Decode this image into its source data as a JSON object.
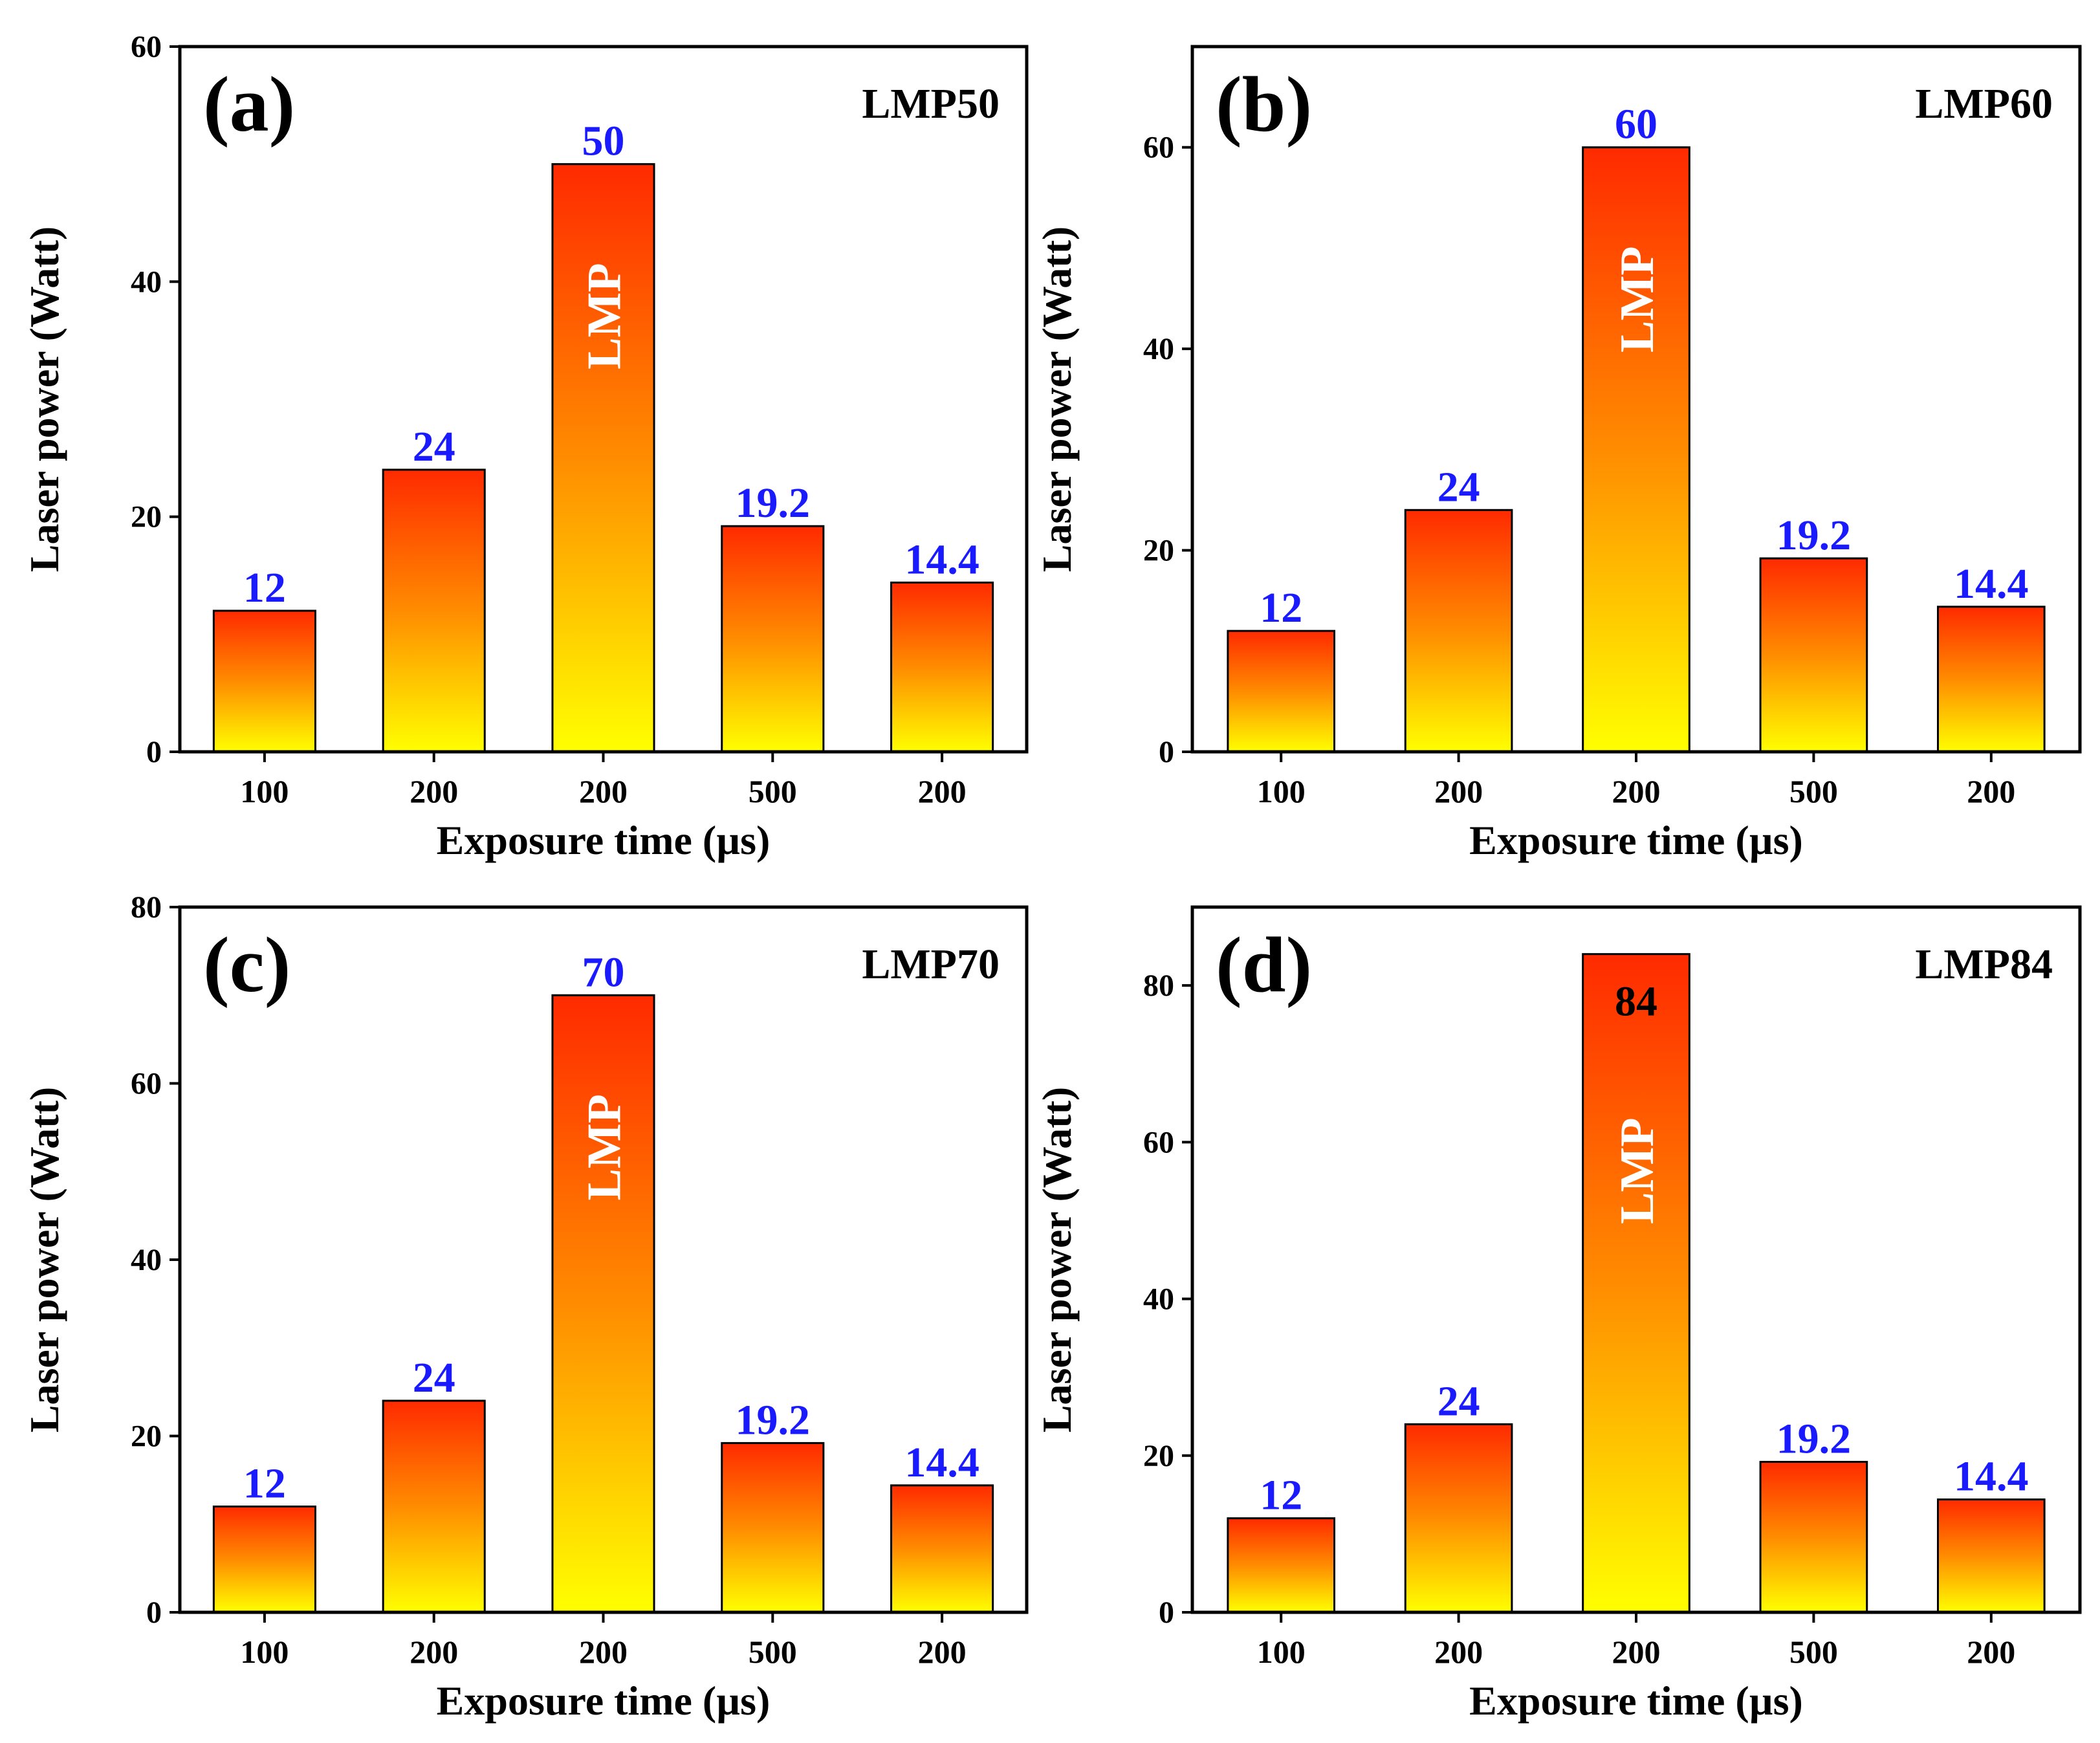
{
  "colors": {
    "bar_top": "#ff2a00",
    "bar_mid": "#ff8c00",
    "bar_bottom": "#ffff00",
    "value_label": "#1a1aff",
    "value_label_inside": "#000000",
    "bar_text": "#ffffff",
    "axis": "#000000"
  },
  "chart_data": [
    {
      "type": "bar",
      "panel_label": "(a)",
      "title": "LMP50",
      "xlabel": "Exposure time (µs)",
      "ylabel": "Laser power (Watt)",
      "categories": [
        "100",
        "200",
        "200",
        "500",
        "200"
      ],
      "values": [
        12,
        24,
        50,
        19.2,
        14.4
      ],
      "value_labels": [
        "12",
        "24",
        "50",
        "19.2",
        "14.4"
      ],
      "label_inside": [
        false,
        false,
        false,
        false,
        false
      ],
      "ylim": [
        0,
        60
      ],
      "yticks": [
        0,
        20,
        40,
        60
      ],
      "ytick_labels": [
        "0",
        "20",
        "40",
        "60"
      ],
      "bar_text": "LMP",
      "bar_text_index": 2
    },
    {
      "type": "bar",
      "panel_label": "(b)",
      "title": "LMP60",
      "xlabel": "Exposure time (µs)",
      "ylabel": "Laser power (Watt)",
      "categories": [
        "100",
        "200",
        "200",
        "500",
        "200"
      ],
      "values": [
        12,
        24,
        60,
        19.2,
        14.4
      ],
      "value_labels": [
        "12",
        "24",
        "60",
        "19.2",
        "14.4"
      ],
      "label_inside": [
        false,
        false,
        false,
        false,
        false
      ],
      "ylim": [
        0,
        70
      ],
      "yticks": [
        0,
        20,
        40,
        60
      ],
      "ytick_labels": [
        "0",
        "20",
        "40",
        "60"
      ],
      "bar_text": "LMP",
      "bar_text_index": 2
    },
    {
      "type": "bar",
      "panel_label": "(c)",
      "title": "LMP70",
      "xlabel": "Exposure time (µs)",
      "ylabel": "Laser power (Watt)",
      "categories": [
        "100",
        "200",
        "200",
        "500",
        "200"
      ],
      "values": [
        12,
        24,
        70,
        19.2,
        14.4
      ],
      "value_labels": [
        "12",
        "24",
        "70",
        "19.2",
        "14.4"
      ],
      "label_inside": [
        false,
        false,
        false,
        false,
        false
      ],
      "ylim": [
        0,
        80
      ],
      "yticks": [
        0,
        20,
        40,
        60,
        80
      ],
      "ytick_labels": [
        "0",
        "20",
        "40",
        "60",
        "80"
      ],
      "bar_text": "LMP",
      "bar_text_index": 2
    },
    {
      "type": "bar",
      "panel_label": "(d)",
      "title": "LMP84",
      "xlabel": "Exposure time (µs)",
      "ylabel": "Laser power (Watt)",
      "categories": [
        "100",
        "200",
        "200",
        "500",
        "200"
      ],
      "values": [
        12,
        24,
        84,
        19.2,
        14.4
      ],
      "value_labels": [
        "12",
        "24",
        "84",
        "19.2",
        "14.4"
      ],
      "label_inside": [
        false,
        false,
        true,
        false,
        false
      ],
      "ylim": [
        0,
        90
      ],
      "yticks": [
        0,
        20,
        40,
        60,
        80
      ],
      "ytick_labels": [
        "0",
        "20",
        "40",
        "60",
        "80"
      ],
      "bar_text": "LMP",
      "bar_text_index": 2
    }
  ]
}
